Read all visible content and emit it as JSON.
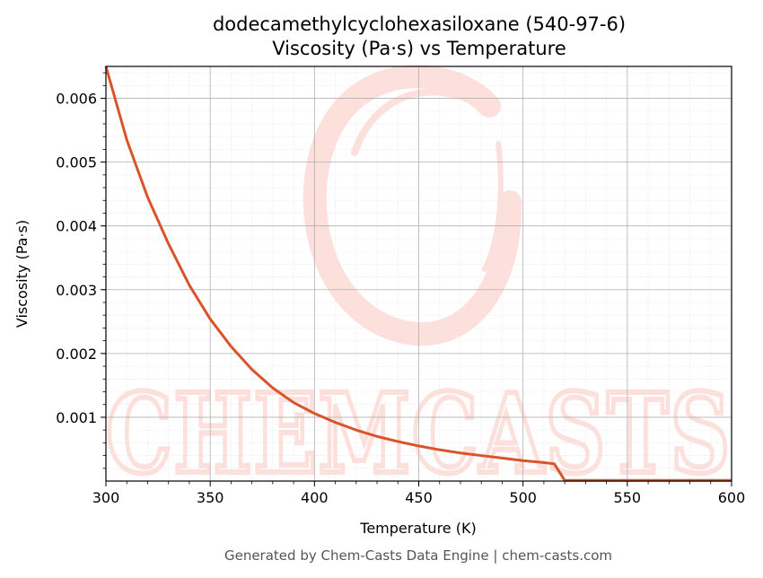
{
  "chart_data": {
    "type": "line",
    "title": "dodecamethylcyclohexasiloxane (540-97-6)",
    "subtitle": "Viscosity (Pa·s) vs Temperature",
    "xlabel": "Temperature (K)",
    "ylabel": "Viscosity (Pa·s)",
    "xlim": [
      300,
      600
    ],
    "ylim": [
      0,
      0.0065
    ],
    "xticks": [
      300,
      350,
      400,
      450,
      500,
      550,
      600
    ],
    "xtick_labels": [
      "300",
      "350",
      "400",
      "450",
      "500",
      "550",
      "600"
    ],
    "yticks": [
      0.001,
      0.002,
      0.003,
      0.004,
      0.005,
      0.006
    ],
    "ytick_labels": [
      "0.001",
      "0.002",
      "0.003",
      "0.004",
      "0.005",
      "0.006"
    ],
    "grid": true,
    "line_color": "#d9542a",
    "series": [
      {
        "x": [
          300,
          310,
          320,
          330,
          340,
          350,
          360,
          370,
          380,
          390,
          400,
          410,
          420,
          430,
          440,
          450,
          460,
          470,
          480,
          490,
          500,
          510,
          515,
          520,
          530,
          540,
          550,
          560,
          570,
          580,
          590,
          600
        ],
        "y": [
          0.0065,
          0.00535,
          0.00445,
          0.00372,
          0.00307,
          0.00254,
          0.00211,
          0.00175,
          0.00146,
          0.00123,
          0.00106,
          0.00092,
          0.0008,
          0.0007,
          0.00062,
          0.00055,
          0.00049,
          0.00044,
          0.0004,
          0.00036,
          0.00032,
          0.00029,
          0.00027,
          1e-05,
          1e-05,
          1e-05,
          1e-05,
          1e-05,
          1e-05,
          1e-05,
          1e-05,
          1e-05
        ]
      }
    ]
  },
  "watermark": {
    "text": "CHEMCASTS",
    "color": "#fde0dc"
  },
  "footer": "Generated by Chem-Casts Data Engine | chem-casts.com"
}
